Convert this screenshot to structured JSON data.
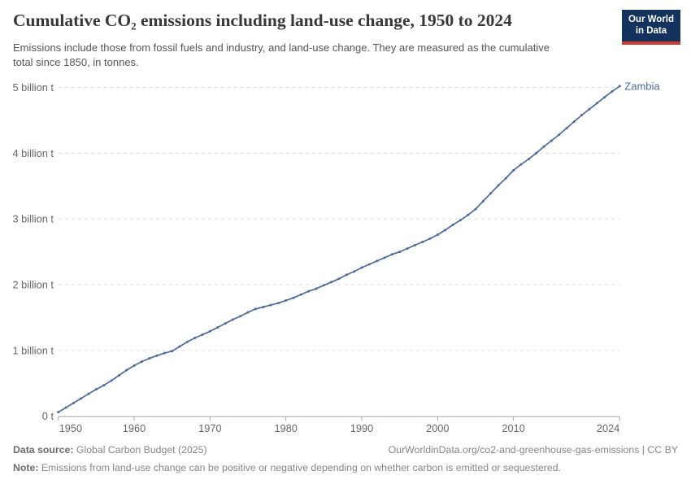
{
  "header": {
    "title": "Cumulative CO₂ emissions including land-use change, 1950 to 2024",
    "subtitle": "Emissions include those from fossil fuels and industry, and land-use change. They are measured as the cumulative total since 1850, in tonnes.",
    "logo": {
      "line1": "Our World",
      "line2": "in Data"
    }
  },
  "chart_data": {
    "type": "line",
    "title": "Cumulative CO₂ emissions including land-use change, 1950 to 2024",
    "unit": "billion tonnes",
    "xlabel": "",
    "ylabel": "",
    "xlim": [
      1950,
      2024
    ],
    "ylim": [
      0,
      5
    ],
    "grid": "horizontal-dashed",
    "legend_position": "end-of-line",
    "end_label": "Zambia",
    "x_ticks": [
      1950,
      1960,
      1970,
      1980,
      1990,
      2000,
      2010,
      2024
    ],
    "y_ticks": [
      {
        "value": 0,
        "label": "0 t"
      },
      {
        "value": 1,
        "label": "1 billion t"
      },
      {
        "value": 2,
        "label": "2 billion t"
      },
      {
        "value": 3,
        "label": "3 billion t"
      },
      {
        "value": 4,
        "label": "4 billion t"
      },
      {
        "value": 5,
        "label": "5 billion t"
      }
    ],
    "series": [
      {
        "name": "Zambia",
        "color": "#4C6A9C",
        "x": [
          1950,
          1951,
          1952,
          1953,
          1954,
          1955,
          1956,
          1957,
          1958,
          1959,
          1960,
          1961,
          1962,
          1963,
          1964,
          1965,
          1966,
          1967,
          1968,
          1969,
          1970,
          1971,
          1972,
          1973,
          1974,
          1975,
          1976,
          1977,
          1978,
          1979,
          1980,
          1981,
          1982,
          1983,
          1984,
          1985,
          1986,
          1987,
          1988,
          1989,
          1990,
          1991,
          1992,
          1993,
          1994,
          1995,
          1996,
          1997,
          1998,
          1999,
          2000,
          2001,
          2002,
          2003,
          2004,
          2005,
          2006,
          2007,
          2008,
          2009,
          2010,
          2011,
          2012,
          2013,
          2014,
          2015,
          2016,
          2017,
          2018,
          2019,
          2020,
          2021,
          2022,
          2023,
          2024
        ],
        "values": [
          0.06,
          0.13,
          0.2,
          0.27,
          0.34,
          0.41,
          0.47,
          0.54,
          0.62,
          0.7,
          0.77,
          0.83,
          0.88,
          0.92,
          0.96,
          0.99,
          1.06,
          1.13,
          1.19,
          1.24,
          1.29,
          1.35,
          1.41,
          1.47,
          1.52,
          1.58,
          1.63,
          1.66,
          1.69,
          1.72,
          1.76,
          1.8,
          1.85,
          1.9,
          1.94,
          1.99,
          2.04,
          2.09,
          2.15,
          2.2,
          2.26,
          2.31,
          2.36,
          2.41,
          2.46,
          2.5,
          2.55,
          2.6,
          2.65,
          2.7,
          2.76,
          2.83,
          2.91,
          2.98,
          3.06,
          3.15,
          3.27,
          3.39,
          3.51,
          3.62,
          3.74,
          3.83,
          3.91,
          4.0,
          4.1,
          4.19,
          4.28,
          4.38,
          4.48,
          4.58,
          4.67,
          4.76,
          4.85,
          4.94,
          5.02
        ]
      }
    ]
  },
  "footer": {
    "datasource_label": "Data source:",
    "datasource": " Global Carbon Budget (2025)",
    "link": "OurWorldinData.org/co2-and-greenhouse-gas-emissions | CC BY",
    "note_label": "Note:",
    "note": " Emissions from land-use change can be positive or negative depending on whether carbon is emitted or sequestered."
  },
  "colors": {
    "line": "#4C6A9C",
    "grid": "#dcdcdc",
    "axis": "#a6a6a6",
    "tick_text": "#676767",
    "title": "#383838",
    "subtitle": "#555555",
    "footer": "#878787",
    "logo_bg": "#13335E",
    "logo_red": "#CE3A2E"
  }
}
